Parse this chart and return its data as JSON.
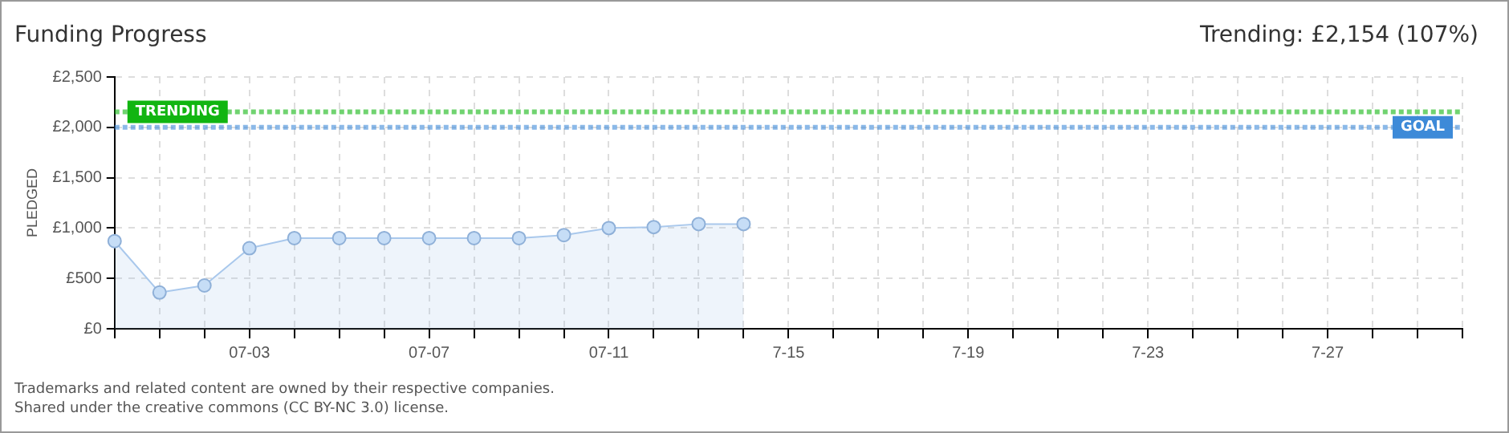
{
  "chart_data": {
    "type": "area",
    "title": "Funding Progress",
    "subtitle": "Trending: £2,154 (107%)",
    "ylabel": "PLEDGED",
    "categories": [
      null,
      null,
      null,
      "07-03",
      null,
      null,
      null,
      "07-07",
      null,
      null,
      null,
      "07-11",
      null,
      null,
      null,
      "7-15",
      null,
      null,
      null,
      "7-19",
      null,
      null,
      null,
      "7-23",
      null,
      null,
      null,
      "7-27",
      null,
      null,
      null
    ],
    "series": [
      {
        "color": "#a9c8ec",
        "values": [
          870,
          360,
          430,
          800,
          900,
          900,
          900,
          900,
          900,
          900,
          930,
          1000,
          1010,
          1040,
          1040,
          null,
          null,
          null,
          null,
          null,
          null,
          null,
          null,
          null,
          null,
          null,
          null,
          null,
          null,
          null,
          null
        ]
      }
    ],
    "ylim": [
      0,
      2500
    ],
    "yticks": [
      {
        "value": 0,
        "label": "£0"
      },
      {
        "value": 500,
        "label": "£500"
      },
      {
        "value": 1000,
        "label": "£1,000"
      },
      {
        "value": 1500,
        "label": "£1,500"
      },
      {
        "value": 2000,
        "label": "£2,000"
      },
      {
        "value": 2500,
        "label": "£2,500"
      }
    ],
    "ref_lines": [
      {
        "axis": "y",
        "value": 2154,
        "label": "TRENDING",
        "color": "#11b511",
        "line_style": "dotted"
      },
      {
        "axis": "y",
        "value": 2000,
        "label": "GOAL",
        "color": "#3d8ad8",
        "line_style": "dotted"
      }
    ],
    "grid": true,
    "marker": "circle",
    "line_style": "solid",
    "legend": false,
    "annotations": [
      "Trademarks and related content are owned by their respective companies.",
      "Shared under the creative commons (CC BY-NC 3.0) license."
    ]
  }
}
